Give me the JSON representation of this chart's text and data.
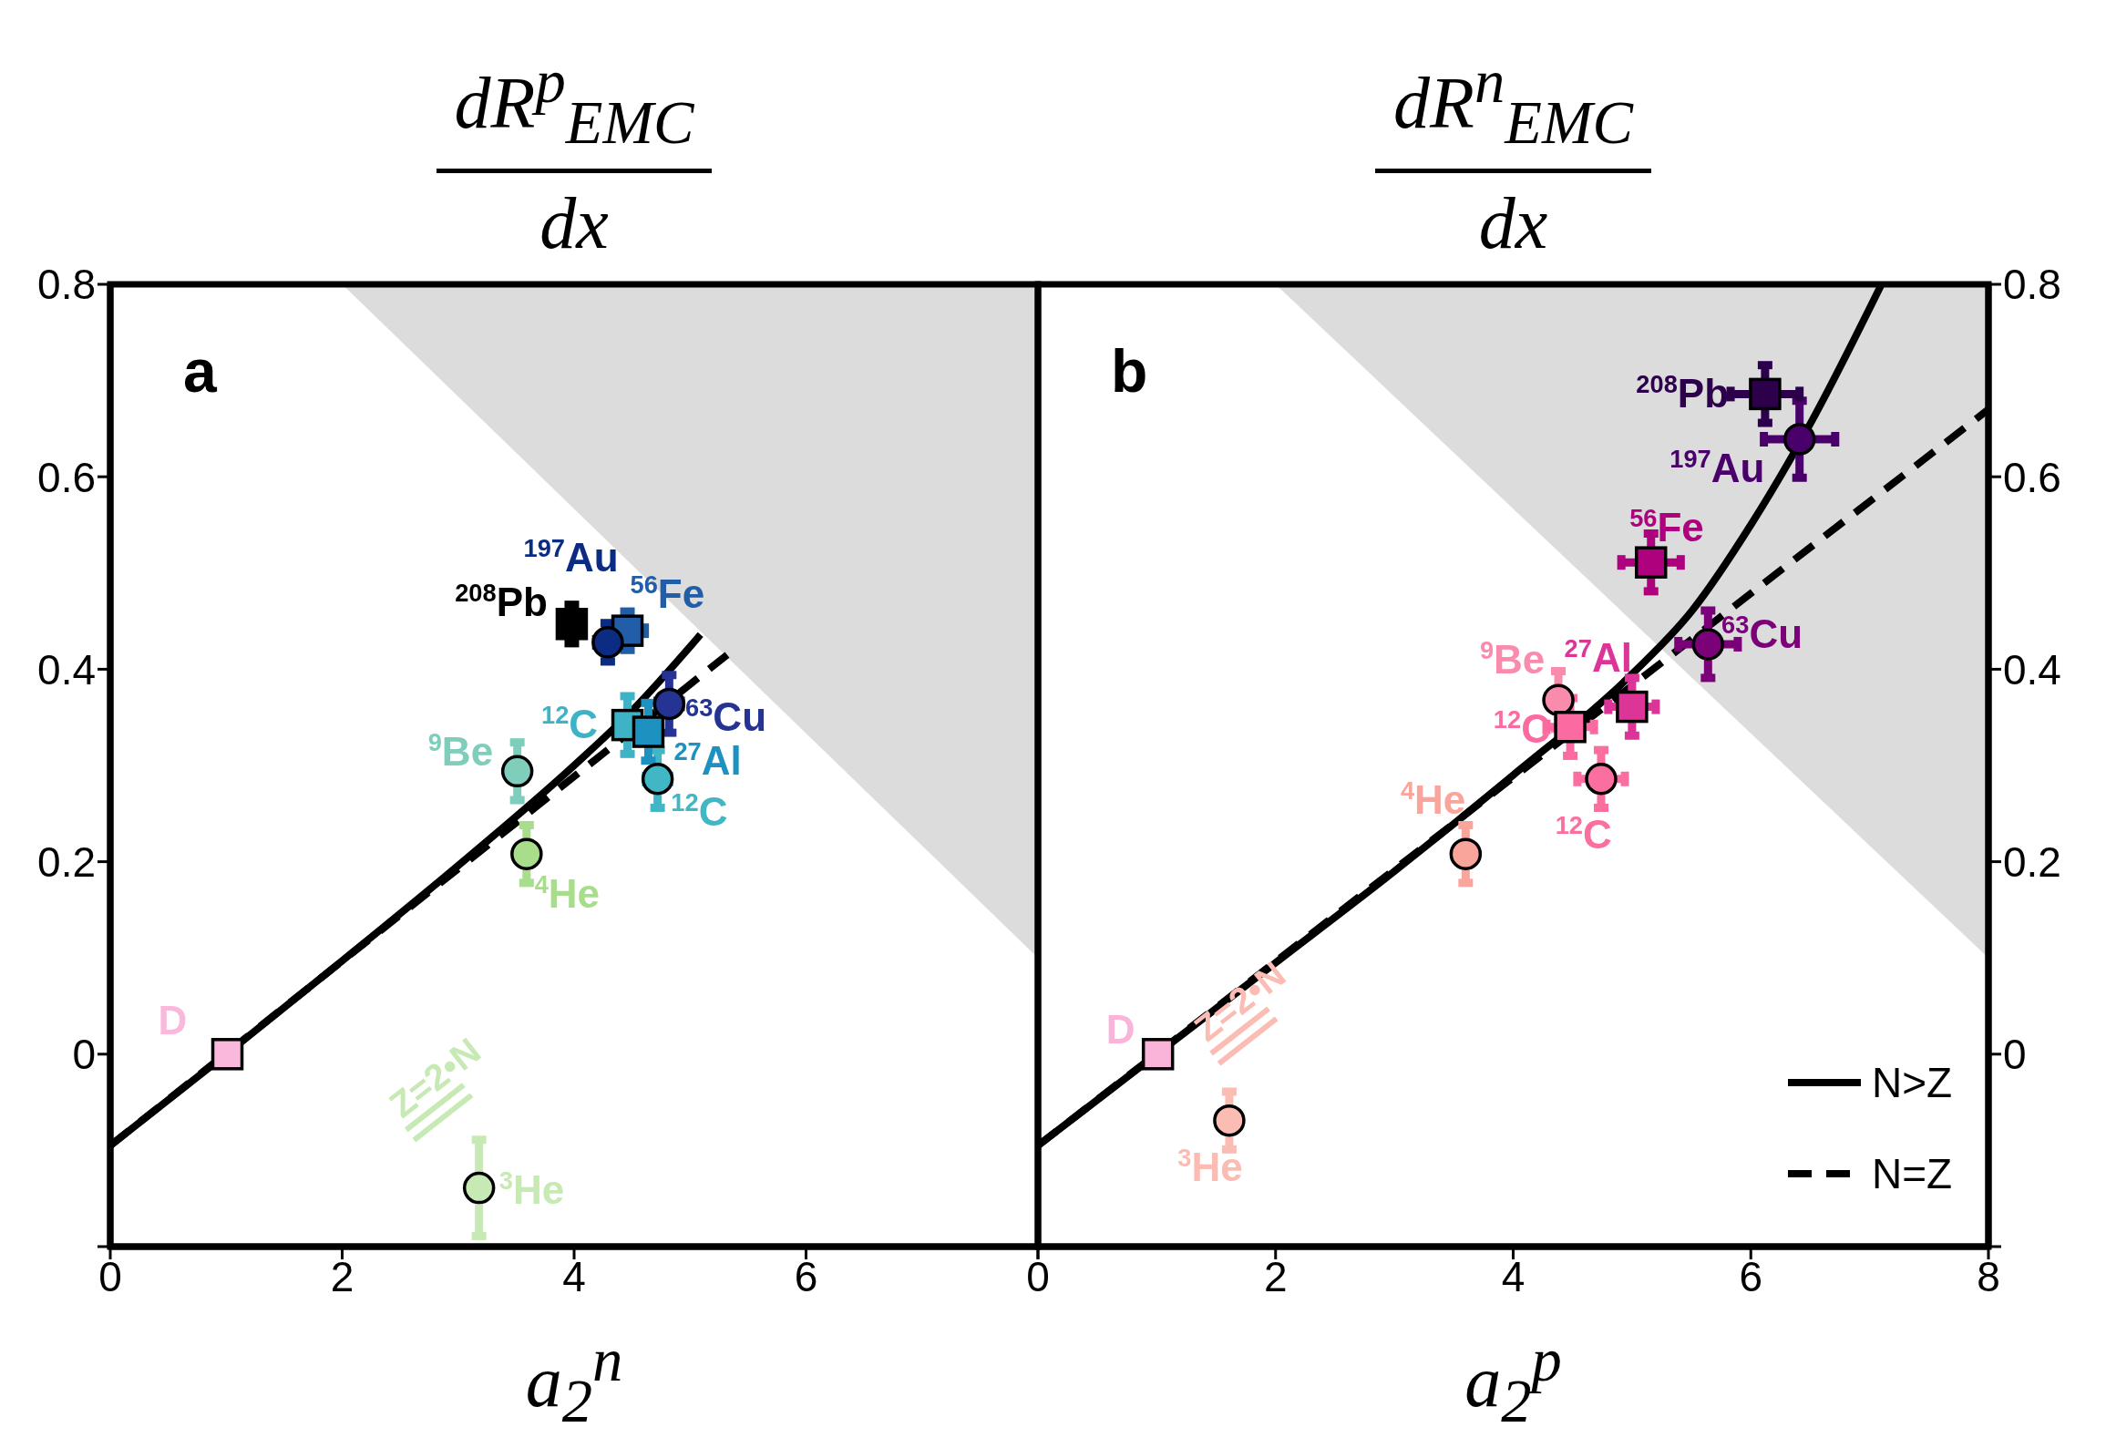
{
  "chart_data": [
    {
      "type": "scatter",
      "title": "dR$^{p}$$_{EMC}$",
      "subtitle": "dx",
      "xlabel": "a$_{2}$$^{n}$",
      "xlim": [
        0,
        8
      ],
      "xticks": [
        0,
        2,
        4,
        6,
        {
          "value": 8,
          "label": null
        }
      ],
      "ylim": [
        -0.2,
        0.8
      ],
      "yticks": [
        {
          "value": -0.2,
          "label": null
        },
        0,
        0.2,
        0.4,
        0.6,
        0.8
      ],
      "legend": false,
      "annotations": [
        "a",
        "Z=2•N"
      ],
      "series": [
        {
          "type": "area",
          "color": "#dcdcdc",
          "x": [
            2.0,
            8
          ],
          "values": [
            0.8,
            0.1
          ]
        },
        {
          "type": "line",
          "color": "#000000",
          "line_style": "solid",
          "x": [
            0,
            1,
            2,
            3,
            4,
            4.5,
            5.09
          ],
          "values": [
            -0.095,
            0,
            0.097,
            0.196,
            0.3,
            0.357,
            0.436
          ]
        },
        {
          "type": "line",
          "color": "#000000",
          "line_style": "dashed",
          "x": [
            0,
            5.32
          ],
          "values": [
            -0.095,
            0.415
          ]
        },
        {
          "name": "D",
          "marker": "square",
          "color": "#f9b8dc",
          "x": [
            1.01
          ],
          "values": [
            0
          ]
        },
        {
          "name": "$^{3}$He",
          "marker": "circle",
          "color": "#c7e9b4",
          "x": [
            3.18
          ],
          "values": [
            -0.139
          ],
          "errors": [
            0.05
          ]
        },
        {
          "name": "$^{4}$He",
          "marker": "circle",
          "color": "#a8dd8c",
          "x": [
            3.59
          ],
          "values": [
            0.208
          ],
          "errors": [
            0.03
          ]
        },
        {
          "name": "$^{9}$Be",
          "marker": "circle",
          "color": "#7fcdbb",
          "x": [
            3.51
          ],
          "values": [
            0.294
          ],
          "errors": [
            0.03
          ]
        },
        {
          "name": "$^{12}$C",
          "marker": "circle",
          "color": "#41b6c4",
          "x": [
            4.72
          ],
          "values": [
            0.286
          ],
          "errors": [
            0.03
          ],
          "xerrors": [
            0.1
          ]
        },
        {
          "name": "$^{12}$C",
          "marker": "square",
          "color": "#3fb3c6",
          "x": [
            4.46
          ],
          "values": [
            0.342
          ],
          "errors": [
            0.03
          ],
          "xerrors": [
            0.1
          ]
        },
        {
          "name": "$^{27}$Al",
          "marker": "square",
          "color": "#1d91c0",
          "x": [
            4.64
          ],
          "values": [
            0.335
          ],
          "errors": [
            0.03
          ],
          "xerrors": [
            0.1
          ]
        },
        {
          "name": "$^{63}$Cu",
          "marker": "circle",
          "color": "#253494",
          "x": [
            4.82
          ],
          "values": [
            0.364
          ],
          "errors": [
            0.03
          ],
          "xerrors": [
            0.1
          ]
        },
        {
          "name": "$^{56}$Fe",
          "marker": "square",
          "color": "#225ea8",
          "x": [
            4.46
          ],
          "values": [
            0.44
          ],
          "errors": [
            0.02
          ],
          "xerrors": [
            0.15
          ]
        },
        {
          "name": "$^{197}$Au",
          "marker": "circle",
          "color": "#0c2c84",
          "x": [
            4.29
          ],
          "values": [
            0.428
          ],
          "errors": [
            0.02
          ],
          "xerrors": [
            0.1
          ]
        },
        {
          "name": "$^{208}$Pb",
          "marker": "square",
          "color": "#000000",
          "x": [
            3.98
          ],
          "values": [
            0.447
          ],
          "errors": [
            0.02
          ],
          "xerrors": [
            0.1
          ]
        }
      ]
    },
    {
      "type": "scatter",
      "title": "dR$^{n}$$_{EMC}$",
      "subtitle": "dx",
      "xlabel": "a$_{2}$$^{p}$",
      "xlim": [
        0,
        8
      ],
      "xticks": [
        0,
        2,
        4,
        6,
        8
      ],
      "ylim": [
        -0.2,
        0.8
      ],
      "yticks": [
        {
          "value": -0.2,
          "label": null
        },
        0,
        0.2,
        0.4,
        0.6,
        0.8
      ],
      "legend": "bottom right",
      "annotations": [
        "b",
        "Z=2•N"
      ],
      "series": [
        {
          "type": "area",
          "color": "#dcdcdc",
          "x": [
            2.0,
            8
          ],
          "values": [
            0.8,
            0.1
          ]
        },
        {
          "type": "line",
          "name": "N>Z",
          "color": "#000000",
          "line_style": "solid",
          "x": [
            0,
            1,
            2,
            3,
            4,
            5,
            5.5,
            6,
            6.5,
            7.1
          ],
          "values": [
            -0.095,
            0,
            0.095,
            0.19,
            0.29,
            0.395,
            0.46,
            0.55,
            0.655,
            0.8
          ]
        },
        {
          "type": "line",
          "name": "N=Z",
          "color": "#000000",
          "line_style": "dashed",
          "x": [
            0,
            8
          ],
          "values": [
            -0.095,
            0.67
          ]
        },
        {
          "name": "D",
          "marker": "square",
          "color": "#fbb4d9",
          "x": [
            1.01
          ],
          "values": [
            0
          ]
        },
        {
          "name": "$^{3}$He",
          "marker": "circle",
          "color": "#fbbcb4",
          "x": [
            1.61
          ],
          "values": [
            -0.069
          ],
          "errors": [
            0.03
          ]
        },
        {
          "name": "$^{4}$He",
          "marker": "circle",
          "color": "#f9a59b",
          "x": [
            3.6
          ],
          "values": [
            0.208
          ],
          "errors": [
            0.03
          ]
        },
        {
          "name": "$^{9}$Be",
          "marker": "circle",
          "color": "#f98bad",
          "x": [
            4.38
          ],
          "values": [
            0.368
          ],
          "errors": [
            0.03
          ]
        },
        {
          "name": "$^{12}$C",
          "marker": "circle",
          "color": "#fa6fa0",
          "x": [
            4.74
          ],
          "values": [
            0.286
          ],
          "errors": [
            0.03
          ],
          "xerrors": [
            0.2
          ]
        },
        {
          "name": "$^{12}$C",
          "marker": "square",
          "color": "#fb6aa0",
          "x": [
            4.48
          ],
          "values": [
            0.34
          ],
          "errors": [
            0.03
          ],
          "xerrors": [
            0.2
          ]
        },
        {
          "name": "$^{27}$Al",
          "marker": "square",
          "color": "#dd3497",
          "x": [
            5.0
          ],
          "values": [
            0.361
          ],
          "errors": [
            0.03
          ],
          "xerrors": [
            0.2
          ]
        },
        {
          "name": "$^{63}$Cu",
          "marker": "circle",
          "color": "#7a0177",
          "x": [
            5.64
          ],
          "values": [
            0.426
          ],
          "errors": [
            0.035
          ],
          "xerrors": [
            0.25
          ]
        },
        {
          "name": "$^{56}$Fe",
          "marker": "square",
          "color": "#ae017e",
          "x": [
            5.16
          ],
          "values": [
            0.511
          ],
          "errors": [
            0.03
          ],
          "xerrors": [
            0.25
          ]
        },
        {
          "name": "$^{197}$Au",
          "marker": "circle",
          "color": "#49006a",
          "x": [
            6.41
          ],
          "values": [
            0.639
          ],
          "errors": [
            0.04
          ],
          "xerrors": [
            0.3
          ]
        },
        {
          "name": "$^{208}$Pb",
          "marker": "square",
          "color": "#2d004b",
          "x": [
            6.12
          ],
          "values": [
            0.686
          ],
          "errors": [
            0.03
          ],
          "xerrors": [
            0.29
          ]
        }
      ]
    }
  ]
}
